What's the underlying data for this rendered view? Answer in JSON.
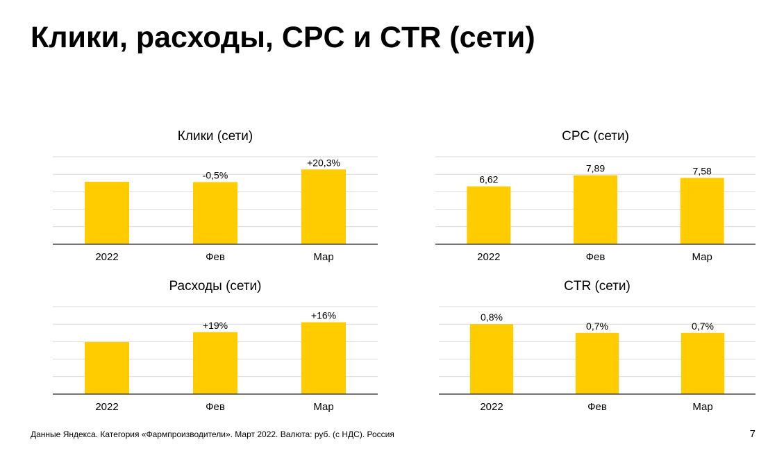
{
  "page": {
    "title": "Клики, расходы, CPC и CTR (сети)",
    "footer": "Данные Яндекса. Категория «Фармпроизводители». Март 2022. Валюта: руб. (с НДС). Россия",
    "page_number": "7"
  },
  "colors": {
    "bar": "#FFCC00",
    "grid": "#d9d9d9",
    "axis": "#222222"
  },
  "chart_data": [
    {
      "type": "bar",
      "title": "Клики (сети)",
      "categories": [
        "2022",
        "Фев",
        "Мар"
      ],
      "values": [
        1.0,
        0.995,
        1.197
      ],
      "data_labels": [
        "",
        "-0,5%",
        "+20,3%"
      ],
      "ylim": [
        0,
        1.4
      ],
      "grid": true
    },
    {
      "type": "bar",
      "title": "CPC (сети)",
      "categories": [
        "2022",
        "Фев",
        "Мар"
      ],
      "values": [
        6.62,
        7.89,
        7.58
      ],
      "data_labels": [
        "6,62",
        "7,89",
        "7,58"
      ],
      "ylim": [
        0,
        10
      ],
      "grid": true
    },
    {
      "type": "bar",
      "title": "Расходы (сети)",
      "categories": [
        "2022",
        "Фев",
        "Мар"
      ],
      "values": [
        1.0,
        1.19,
        1.38
      ],
      "data_labels": [
        "",
        "+19%",
        "+16%"
      ],
      "ylim": [
        0,
        1.68
      ],
      "grid": true
    },
    {
      "type": "bar",
      "title": "CTR (сети)",
      "categories": [
        "2022",
        "Фев",
        "Мар"
      ],
      "values": [
        0.8,
        0.7,
        0.7
      ],
      "data_labels": [
        "0,8%",
        "0,7%",
        "0,7%"
      ],
      "ylim": [
        0,
        1.0
      ],
      "grid": true
    }
  ]
}
